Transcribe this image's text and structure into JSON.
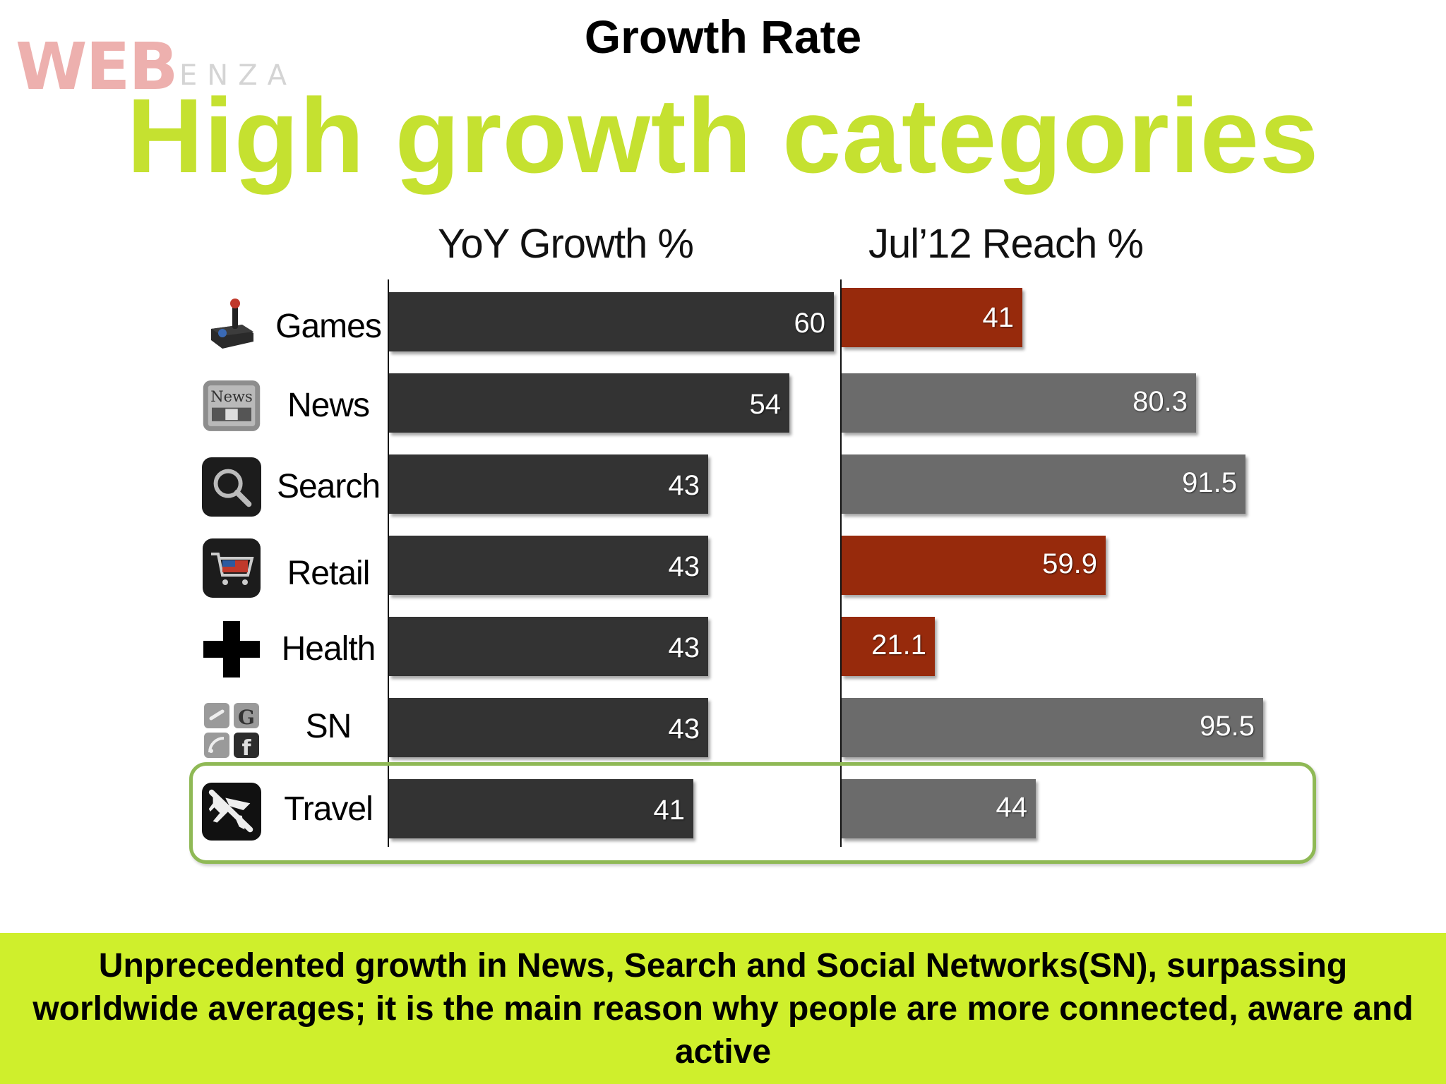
{
  "header": {
    "title": "Growth Rate",
    "headline": "High growth categories",
    "logo_mark": "WEB",
    "logo_word": "ENZA"
  },
  "chart_data": {
    "type": "bar",
    "categories": [
      "Games",
      "News",
      "Search",
      "Retail",
      "Health",
      "SN",
      "Travel"
    ],
    "icons": [
      "joystick-icon",
      "newspaper-icon",
      "magnifier-icon",
      "shopping-cart-icon",
      "health-cross-icon",
      "social-network-icon",
      "airplane-icon"
    ],
    "series": [
      {
        "name": "YoY Growth %",
        "values": [
          60,
          54,
          43,
          43,
          43,
          43,
          41
        ],
        "colors": [
          "#333333",
          "#333333",
          "#333333",
          "#333333",
          "#333333",
          "#333333",
          "#333333"
        ]
      },
      {
        "name": "Jul’12 Reach %",
        "values": [
          41,
          80.3,
          91.5,
          59.9,
          21.1,
          95.5,
          44
        ],
        "colors": [
          "#972a0c",
          "#6b6b6b",
          "#6b6b6b",
          "#972a0c",
          "#972a0c",
          "#6b6b6b",
          "#6b6b6b"
        ]
      }
    ],
    "highlighted_category": "Travel",
    "legend": "none",
    "grid": false
  },
  "footer": {
    "text": "Unprecedented growth in News, Search and Social Networks(SN), surpassing worldwide averages; it is the main reason why people are more connected, aware and active"
  }
}
